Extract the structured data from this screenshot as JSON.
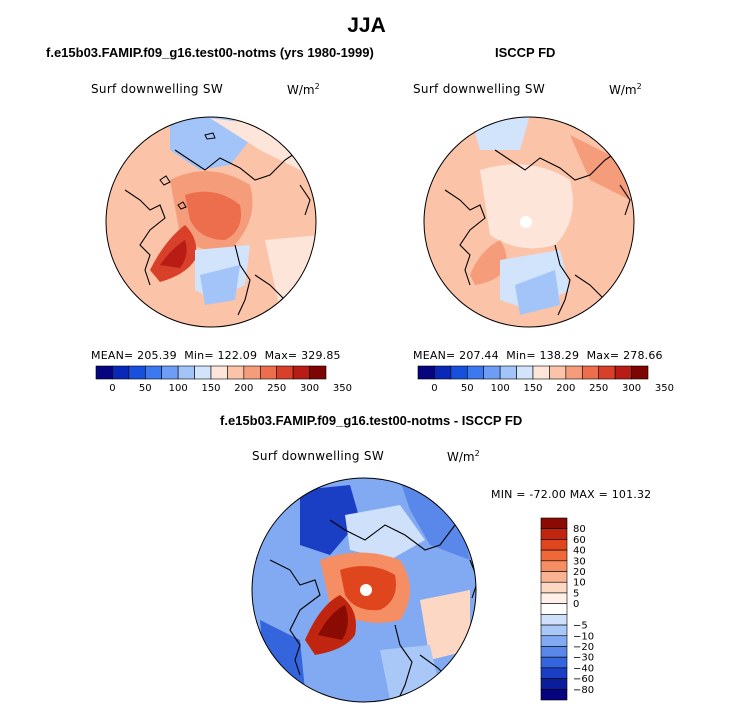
{
  "title": "JJA",
  "panels": [
    {
      "title": "f.e15b03.FAMIP.f09_g16.test00-notms (yrs 1980-1999)",
      "variable": "Surf downwelling SW",
      "units_base": "W/m",
      "units_exp": "2",
      "stats": {
        "mean_label": "MEAN=",
        "mean": "205.39",
        "min_label": "Min=",
        "min": "122.09",
        "max_label": "Max=",
        "max": "329.85"
      }
    },
    {
      "title": "ISCCP FD",
      "variable": "Surf downwelling SW",
      "units_base": "W/m",
      "units_exp": "2",
      "stats": {
        "mean_label": "MEAN=",
        "mean": "207.44",
        "min_label": "Min=",
        "min": "138.29",
        "max_label": "Max=",
        "max": "278.66"
      }
    },
    {
      "title": "f.e15b03.FAMIP.f09_g16.test00-notms - ISCCP FD",
      "variable": "Surf downwelling SW",
      "units_base": "W/m",
      "units_exp": "2",
      "stats_text": "MIN = -72.00 MAX = 101.32"
    }
  ],
  "chart_data": [
    {
      "type": "heatmap",
      "projection": "north-polar-stereographic",
      "title": "f.e15b03.FAMIP.f09_g16.test00-notms (yrs 1980-1999)",
      "variable": "Surf downwelling SW",
      "units": "W/m^2",
      "mean": 205.39,
      "min": 122.09,
      "max": 329.85,
      "colorbar": {
        "orientation": "horizontal",
        "levels": [
          0,
          50,
          100,
          150,
          200,
          250,
          300,
          350
        ],
        "tick_labels": [
          "0",
          "50",
          "100",
          "150",
          "200",
          "250",
          "300",
          "350"
        ],
        "colors": [
          "#06047e",
          "#0a28b8",
          "#1650dd",
          "#3c78ef",
          "#6e9df5",
          "#a3c4f9",
          "#d2e3fc",
          "#fde6d9",
          "#fbc4a8",
          "#f59d7a",
          "#ec6e4c",
          "#d9402a",
          "#b81c14",
          "#7d0604"
        ]
      }
    },
    {
      "type": "heatmap",
      "projection": "north-polar-stereographic",
      "title": "ISCCP FD",
      "variable": "Surf downwelling SW",
      "units": "W/m^2",
      "mean": 207.44,
      "min": 138.29,
      "max": 278.66,
      "colorbar": {
        "orientation": "horizontal",
        "levels": [
          0,
          50,
          100,
          150,
          200,
          250,
          300,
          350
        ],
        "tick_labels": [
          "0",
          "50",
          "100",
          "150",
          "200",
          "250",
          "300",
          "350"
        ],
        "colors": [
          "#06047e",
          "#0a28b8",
          "#1650dd",
          "#3c78ef",
          "#6e9df5",
          "#a3c4f9",
          "#d2e3fc",
          "#fde6d9",
          "#fbc4a8",
          "#f59d7a",
          "#ec6e4c",
          "#d9402a",
          "#b81c14",
          "#7d0604"
        ]
      }
    },
    {
      "type": "heatmap",
      "projection": "north-polar-stereographic",
      "title": "f.e15b03.FAMIP.f09_g16.test00-notms - ISCCP FD",
      "variable": "Surf downwelling SW",
      "units": "W/m^2",
      "min": -72.0,
      "max": 101.32,
      "colorbar": {
        "orientation": "vertical",
        "tick_labels": [
          "80",
          "60",
          "40",
          "30",
          "20",
          "10",
          "5",
          "0",
          "−5",
          "−10",
          "−20",
          "−30",
          "−40",
          "−60",
          "−80"
        ],
        "colors": [
          "#8a0a04",
          "#c0260f",
          "#e0461e",
          "#ee6838",
          "#f68e64",
          "#f9b392",
          "#fcd7c3",
          "#fef0e8",
          "#ffffff",
          "#cfe0fb",
          "#aac8f7",
          "#82aaf2",
          "#5a88ea",
          "#3565dd",
          "#1a3fc4",
          "#0a1d9a",
          "#06047e"
        ]
      }
    }
  ]
}
